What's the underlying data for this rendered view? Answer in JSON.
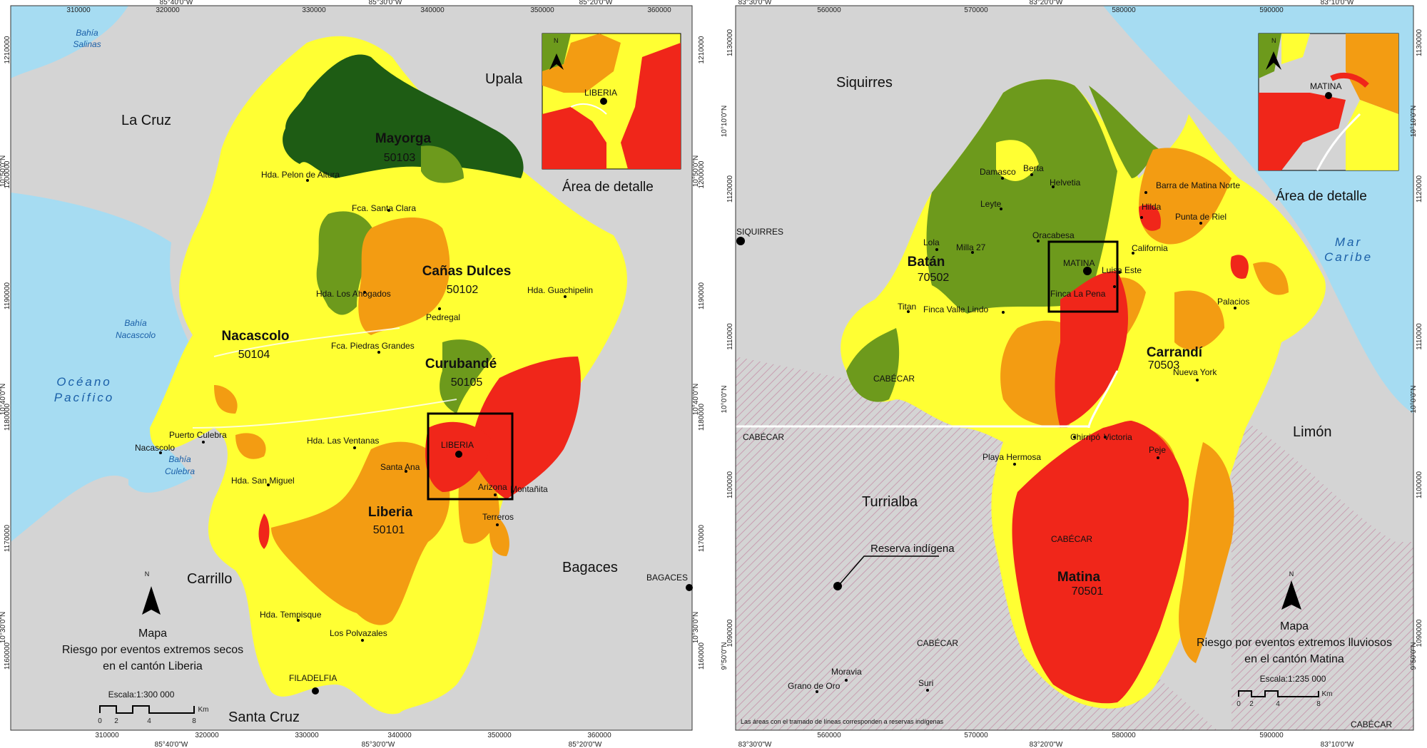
{
  "colors": {
    "land_gray": "#d4d4d4",
    "water": "#a6dcf2",
    "risk_very_low": "#1e5c14",
    "risk_low": "#6d9a1c",
    "risk_medium": "#ffff33",
    "risk_high": "#f39c12",
    "risk_very_high": "#f0261a",
    "indigenous_hatch": "#c07a9a"
  },
  "left_map": {
    "top_ticks": {
      "meters": [
        "310000",
        "320000",
        "330000",
        "340000",
        "350000",
        "360000"
      ],
      "degrees": [
        "85°40'0\"W",
        "85°30'0\"W",
        "85°20'0\"W"
      ]
    },
    "bottom_ticks": {
      "meters": [
        "310000",
        "320000",
        "330000",
        "340000",
        "350000",
        "360000"
      ],
      "degrees": [
        "85°40'0\"W",
        "85°30'0\"W",
        "85°20'0\"W"
      ]
    },
    "left_ticks": {
      "meters": [
        "1210000",
        "1200000",
        "1190000",
        "1180000",
        "1170000",
        "1160000"
      ],
      "degrees": [
        "10°50'0\"N",
        "10°40'0\"N",
        "10°30'0\"N"
      ]
    },
    "right_ticks": {
      "meters": [
        "1210000",
        "1200000",
        "1190000",
        "1180000",
        "1170000",
        "1160000"
      ],
      "degrees": [
        "10°50'0\"N",
        "10°40'0\"N",
        "10°30'0\"N"
      ]
    },
    "neighbors": [
      "La Cruz",
      "Upala",
      "Carrillo",
      "Bagaces",
      "Santa Cruz"
    ],
    "districts": [
      {
        "name": "Mayorga",
        "code": "50103"
      },
      {
        "name": "Cañas Dulces",
        "code": "50102"
      },
      {
        "name": "Nacascolo",
        "code": "50104"
      },
      {
        "name": "Curubandé",
        "code": "50105"
      },
      {
        "name": "Liberia",
        "code": "50101"
      }
    ],
    "water": {
      "bahia_salinas": [
        "Bahía",
        "Salinas"
      ],
      "bahia_nacascolo": [
        "Bahía",
        "Nacascolo"
      ],
      "oceano": [
        "Océano",
        "Pacífico"
      ],
      "bahia_culebra": [
        "Bahía",
        "Culebra"
      ]
    },
    "places": [
      "Hda. Pelon de Altura",
      "Fca. Santa Clara",
      "Hda. Los Ahogados",
      "Pedregal",
      "Hda. Guachipelin",
      "Fca. Piedras Grandes",
      "Hda. Las Ventanas",
      "Puerto Culebra",
      "Nacascolo",
      "Hda. San Miguel",
      "Santa Ana",
      "Arizona",
      "Montañita",
      "Terreros",
      "Hda. Tempisque",
      "Los Polvazales",
      "FILADELFIA",
      "BAGACES",
      "LIBERIA"
    ],
    "inset_label": "Área de detalle",
    "inset_town": "LIBERIA",
    "north": "N",
    "title": [
      "Mapa",
      "Riesgo por eventos extremos secos",
      "en el cantón Liberia"
    ],
    "scale": {
      "label": "Escala:1:300 000",
      "ticks": [
        "0",
        "2",
        "4",
        "8"
      ],
      "unit": "Km"
    }
  },
  "right_map": {
    "top_ticks": {
      "meters": [
        "560000",
        "570000",
        "580000",
        "590000"
      ],
      "degrees": [
        "83°30'0\"W",
        "83°20'0\"W",
        "83°10'0\"W"
      ]
    },
    "bottom_ticks": {
      "meters": [
        "560000",
        "570000",
        "580000",
        "590000"
      ],
      "degrees": [
        "83°30'0\"W",
        "83°20'0\"W",
        "83°10'0\"W"
      ]
    },
    "left_ticks": {
      "meters": [
        "1130000",
        "1120000",
        "1110000",
        "1100000",
        "1090000"
      ],
      "degrees": [
        "10°10'0\"N",
        "10°0'0\"N",
        "9°50'0\"N"
      ]
    },
    "right_ticks": {
      "meters": [
        "1130000",
        "1120000",
        "1110000",
        "1100000",
        "1090000"
      ],
      "degrees": [
        "10°10'0\"N",
        "10°0'0\"N",
        "9°50'0\"N"
      ]
    },
    "neighbors": [
      "Siquirres",
      "Turrialba",
      "Limón"
    ],
    "districts": [
      {
        "name": "Batán",
        "code": "70502"
      },
      {
        "name": "Carrandí",
        "code": "70503"
      },
      {
        "name": "Matina",
        "code": "70501"
      }
    ],
    "water": {
      "mar": [
        "Mar",
        "Caribe"
      ]
    },
    "places": [
      "Damasco",
      "Berta",
      "Helvetia",
      "Barra de Matina Norte",
      "Leyte",
      "Hilda",
      "Punta de Riel",
      "Oracabesa",
      "Lola",
      "Milla 27",
      "MATINA",
      "Luisa Este",
      "California",
      "Finca La Pena",
      "Titan",
      "Finca Valle Lindo",
      "Palacios",
      "Nueva York",
      "Chirripó",
      "Victoria",
      "Peje",
      "Playa Hermosa",
      "Moravia",
      "Grano de Oro",
      "Suri",
      "SIQUIRRES"
    ],
    "cabecar": "CABÉCAR",
    "reserva": "Reserva indígena",
    "inset_label": "Área de detalle",
    "inset_town": "MATINA",
    "north": "N",
    "title": [
      "Mapa",
      "Riesgo por eventos extremos lluviosos",
      "en el cantón Matina"
    ],
    "scale": {
      "label": "Escala:1:235 000",
      "ticks": [
        "0",
        "2",
        "4",
        "8"
      ],
      "unit": "Km"
    },
    "footnote": "Las áreas con el tramado de líneas corresponden a reservas indígenas"
  }
}
